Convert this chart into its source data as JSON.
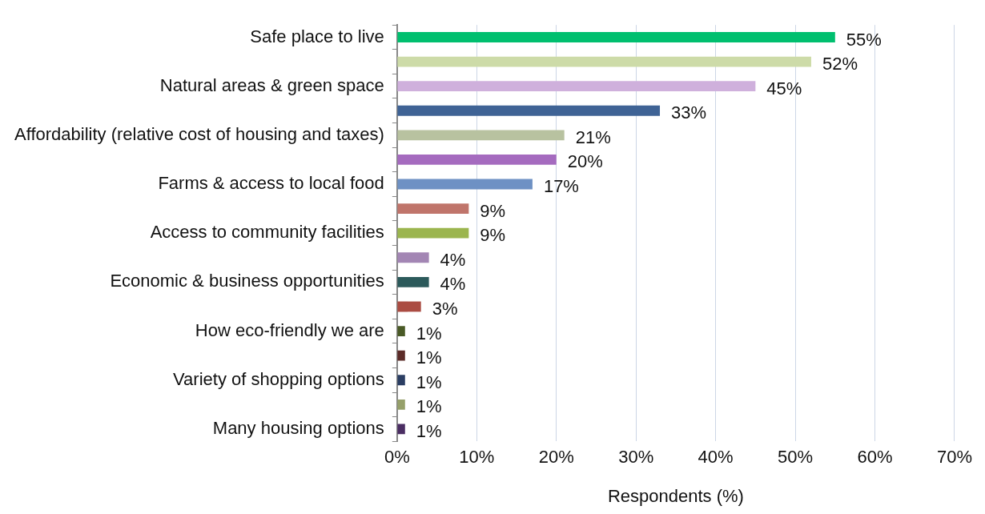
{
  "chart_data": {
    "type": "bar",
    "orientation": "horizontal",
    "xlabel": "Respondents (%)",
    "categories": [
      "Safe place to live",
      null,
      "Natural areas & green space",
      null,
      "Affordability (relative cost of housing and taxes)",
      null,
      "Farms & access to local food",
      null,
      "Access to community facilities",
      null,
      "Economic & business opportunities",
      null,
      "How eco-friendly we are",
      null,
      "Variety of shopping options",
      null,
      "Many housing options"
    ],
    "values": [
      55,
      52,
      45,
      33,
      21,
      20,
      17,
      9,
      9,
      4,
      4,
      3,
      1,
      1,
      1,
      1,
      1
    ],
    "value_labels": [
      "55%",
      "52%",
      "45%",
      "33%",
      "21%",
      "20%",
      "17%",
      "9%",
      "9%",
      "4%",
      "4%",
      "3%",
      "1%",
      "1%",
      "1%",
      "1%",
      "1%"
    ],
    "colors": [
      "#00bf6f",
      "#cddba8",
      "#cfb0dc",
      "#3f6395",
      "#b8c2a0",
      "#a56bbf",
      "#6e91c4",
      "#c0756b",
      "#9bb54e",
      "#a386b4",
      "#2c5a5b",
      "#ab4c42",
      "#4a5a26",
      "#5c2c28",
      "#2b3e63",
      "#96a06a",
      "#4b2e63"
    ],
    "xlim": [
      0,
      70
    ],
    "xticks": [
      {
        "value": 0,
        "label": "0%"
      },
      {
        "value": 10,
        "label": "10%"
      },
      {
        "value": 20,
        "label": "20%"
      },
      {
        "value": 30,
        "label": "30%"
      },
      {
        "value": 40,
        "label": "40%"
      },
      {
        "value": 50,
        "label": "50%"
      },
      {
        "value": 60,
        "label": "60%"
      },
      {
        "value": 70,
        "label": "70%"
      }
    ],
    "grid": "x",
    "legend": false
  }
}
